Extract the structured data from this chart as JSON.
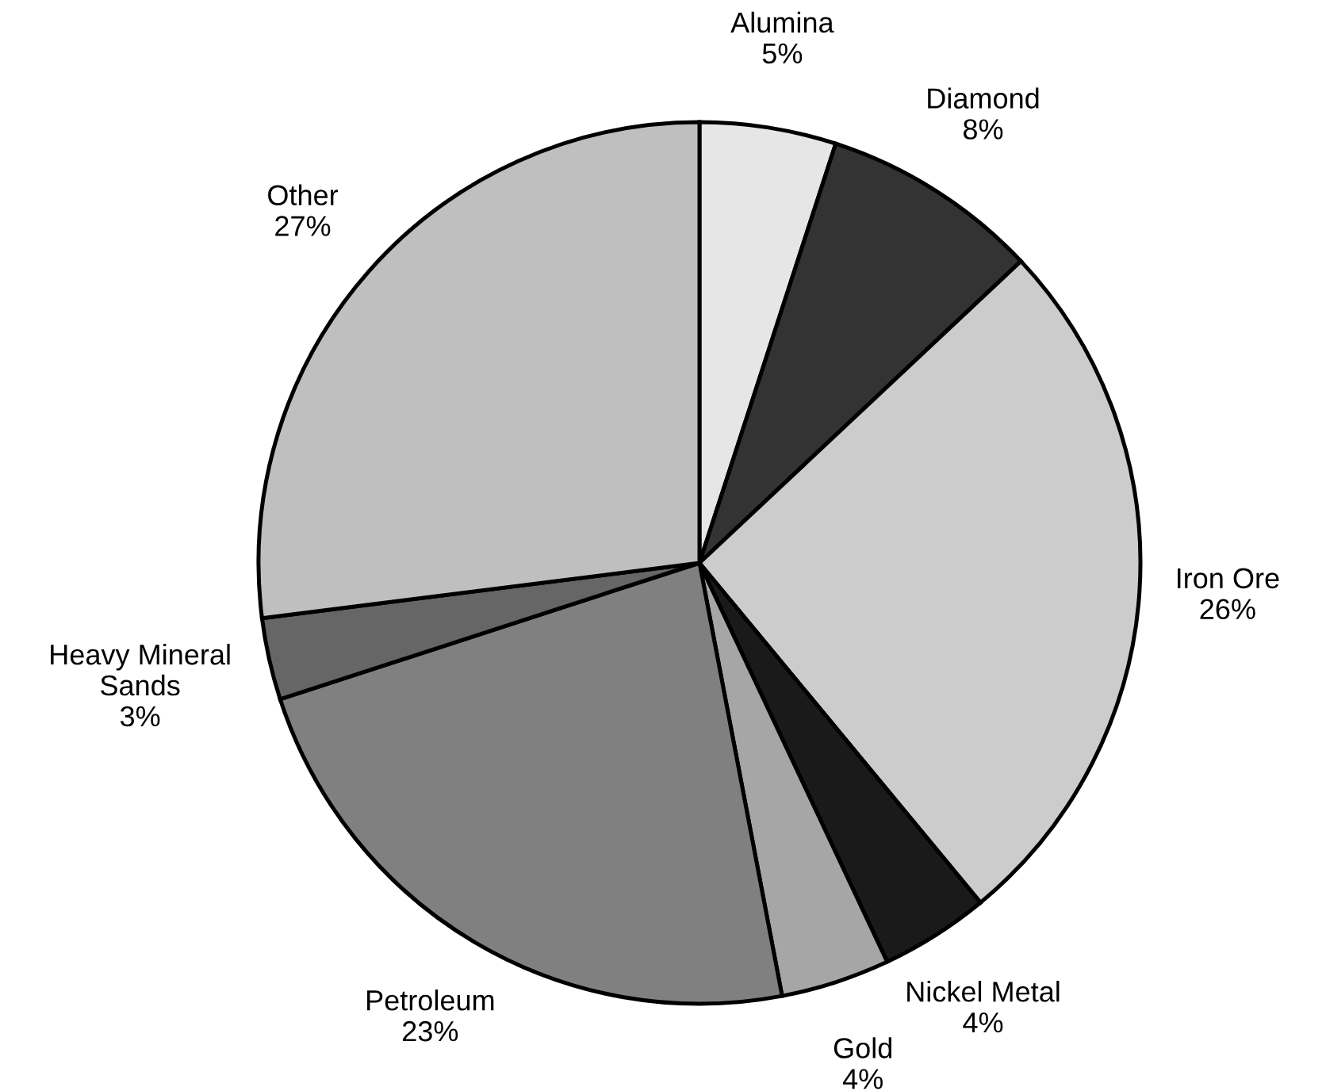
{
  "chart_data": {
    "type": "pie",
    "categories": [
      "Alumina",
      "Diamond",
      "Iron Ore",
      "Nickel Metal",
      "Gold",
      "Petroleum",
      "Heavy Mineral Sands",
      "Other"
    ],
    "values": [
      5,
      8,
      26,
      4,
      4,
      23,
      3,
      27
    ],
    "value_labels": [
      "5%",
      "8%",
      "26%",
      "4%",
      "4%",
      "23%",
      "3%",
      "27%"
    ],
    "colors": [
      "#e6e6e6",
      "#333333",
      "#cccccc",
      "#1a1a1a",
      "#a6a6a6",
      "#808080",
      "#666666",
      "#bfbfbf"
    ]
  }
}
